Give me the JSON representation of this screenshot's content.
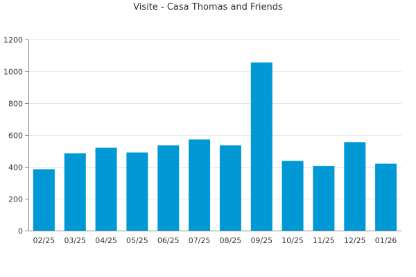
{
  "chart_data": {
    "type": "bar",
    "title": "Visite - Casa Thomas and Friends",
    "xlabel": "",
    "ylabel": "",
    "categories": [
      "02/25",
      "03/25",
      "04/25",
      "05/25",
      "06/25",
      "07/25",
      "08/25",
      "09/25",
      "10/25",
      "11/25",
      "12/25",
      "01/26"
    ],
    "values": [
      385,
      485,
      520,
      490,
      535,
      572,
      535,
      1055,
      438,
      405,
      555,
      420
    ],
    "ylim": [
      0,
      1200
    ],
    "yticks": [
      0,
      200,
      400,
      600,
      800,
      1000,
      1200
    ],
    "grid": true,
    "legend": "none",
    "bar_color": "#0099d6",
    "grid_color": "#e6e6e6",
    "axis_color": "#888888"
  }
}
